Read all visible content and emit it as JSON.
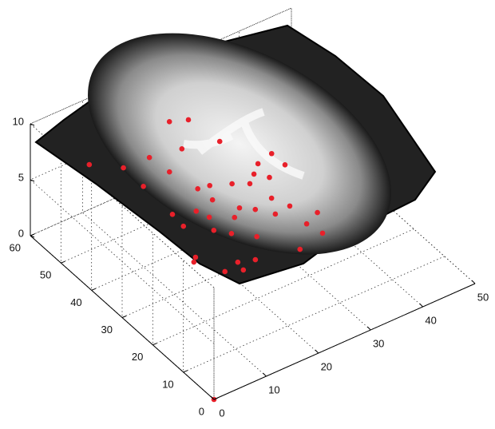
{
  "chart_data": {
    "type": "scatter3d",
    "x": [
      21.3,
      24.0,
      24.9,
      19.0,
      4.9,
      8.8,
      14.1,
      13.6,
      29.8,
      26.6,
      29.9,
      15.3,
      17.3,
      20.4,
      22.7,
      23.4,
      19.7,
      17.9,
      15.6,
      11.9,
      8.4,
      8.1,
      12.7,
      15.9,
      21.6,
      24.6,
      27.2,
      24.2,
      24.9,
      19.7,
      13.2,
      16.0,
      11.4,
      5.2,
      4.3,
      6.9,
      9.5,
      12.5,
      9.9,
      0,
      24.6,
      26.1,
      8.7
    ],
    "y": [
      50.9,
      49.3,
      40.6,
      42.9,
      49.1,
      44.6,
      38.6,
      44.3,
      32.0,
      31.0,
      27.8,
      31.4,
      30.9,
      28.9,
      27.0,
      21.1,
      20.1,
      22.2,
      27.1,
      26.1,
      27.9,
      23.8,
      23.2,
      20.4,
      16.8,
      17.2,
      12.6,
      11.0,
      7.0,
      5.5,
      16.8,
      13.3,
      19.5,
      14.9,
      13.9,
      8.2,
      6.6,
      7.8,
      9.1,
      0,
      28.9,
      26.4,
      37.9
    ],
    "z": [
      8,
      8,
      8,
      8,
      8,
      8,
      8,
      8,
      8,
      8,
      8,
      8,
      8,
      8,
      8,
      8,
      8,
      8,
      8,
      8,
      8,
      8,
      8,
      8,
      8,
      8,
      8,
      8,
      8,
      8,
      8,
      8,
      8,
      8,
      8,
      8,
      8,
      8,
      8,
      0,
      8,
      8,
      8
    ],
    "color": "#e8202a",
    "xlim": [
      0,
      50
    ],
    "xticks": [
      0,
      10,
      20,
      30,
      40,
      50
    ],
    "ylim": [
      0,
      60
    ],
    "yticks": [
      0,
      10,
      20,
      30,
      40,
      50,
      60
    ],
    "zlim": [
      0,
      10
    ],
    "zticks": [
      0,
      5,
      10
    ],
    "grid": true
  }
}
